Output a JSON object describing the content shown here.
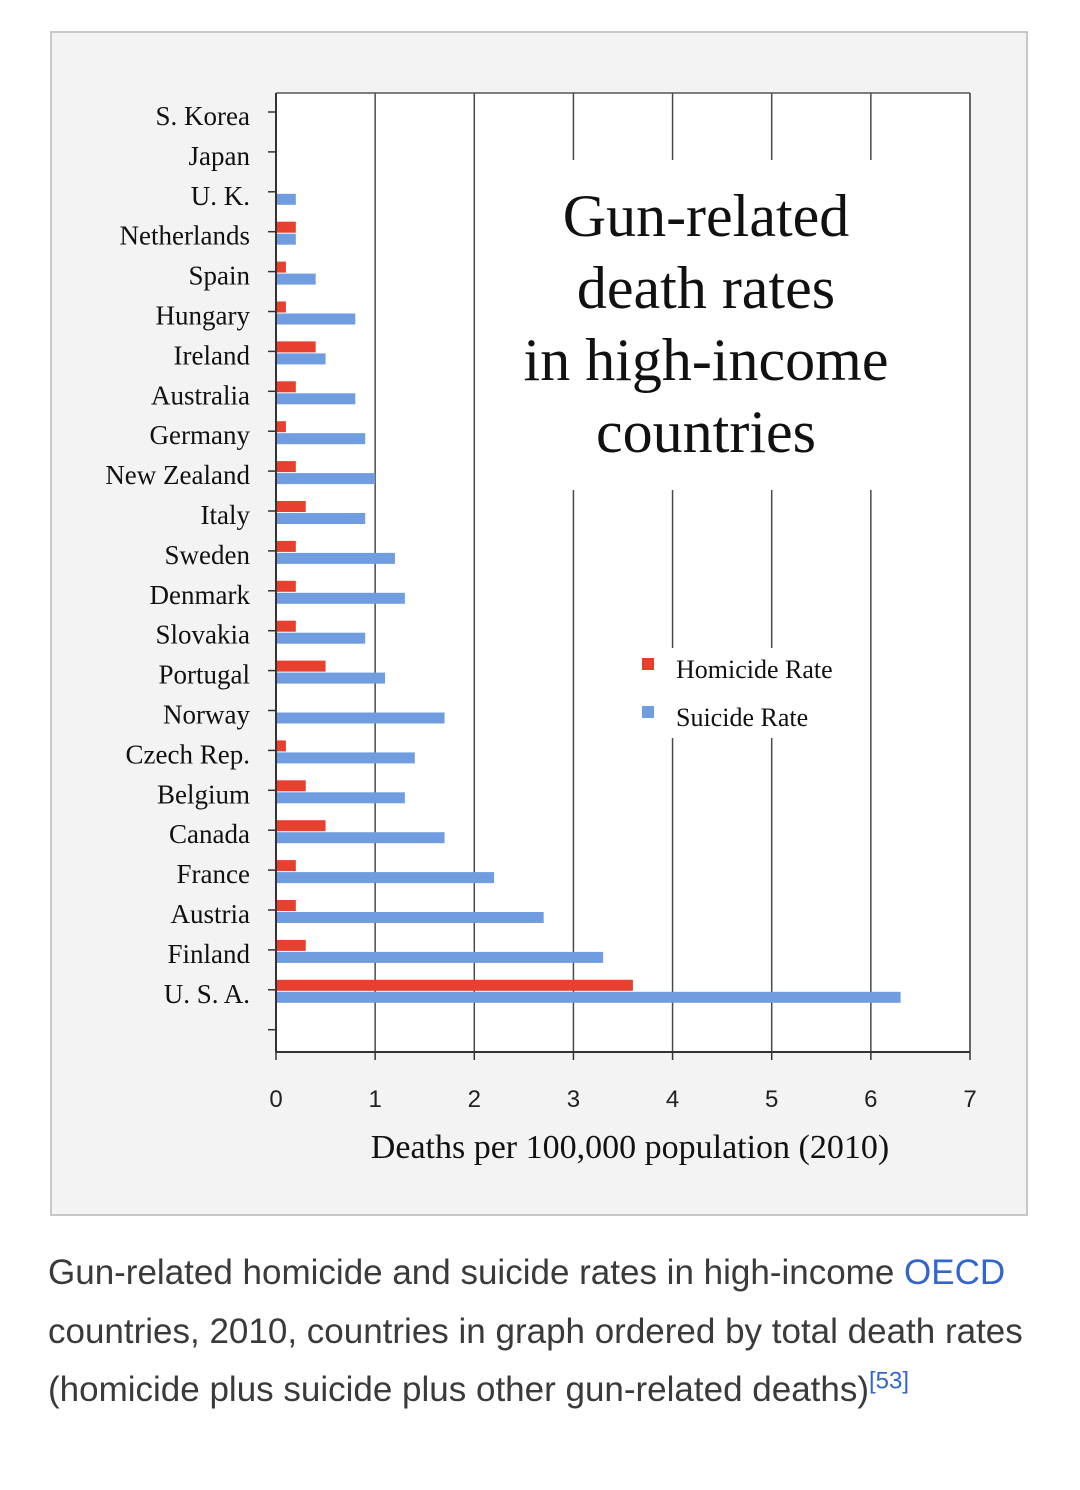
{
  "chart_data": {
    "type": "bar",
    "orientation": "horizontal",
    "title": "Gun-related death rates in high-income countries",
    "title_lines": [
      "Gun-related",
      "death rates",
      "in high-income",
      "countries"
    ],
    "xlabel": "Deaths per 100,000 population (2010)",
    "ylabel": "",
    "xlim": [
      0,
      7
    ],
    "xticks": [
      "0",
      "1",
      "2",
      "3",
      "4",
      "5",
      "6",
      "7"
    ],
    "grid": "vertical",
    "legend_position": "right",
    "categories": [
      "S. Korea",
      "Japan",
      "U. K.",
      "Netherlands",
      "Spain",
      "Hungary",
      "Ireland",
      "Australia",
      "Germany",
      "New Zealand",
      "Italy",
      "Sweden",
      "Denmark",
      "Slovakia",
      "Portugal",
      "Norway",
      "Czech Rep.",
      "Belgium",
      "Canada",
      "France",
      "Austria",
      "Finland",
      "U. S. A."
    ],
    "series": [
      {
        "name": "Homicide Rate",
        "color": "#e8402f",
        "values": [
          0,
          0,
          0,
          0.2,
          0.1,
          0.1,
          0.4,
          0.2,
          0.1,
          0.2,
          0.3,
          0.2,
          0.2,
          0.2,
          0.5,
          0,
          0.1,
          0.3,
          0.5,
          0.2,
          0.2,
          0.3,
          3.6
        ]
      },
      {
        "name": "Suicide Rate",
        "color": "#6f9de0",
        "values": [
          0,
          0,
          0.2,
          0.2,
          0.4,
          0.8,
          0.5,
          0.8,
          0.9,
          1.0,
          0.9,
          1.2,
          1.3,
          0.9,
          1.1,
          1.7,
          1.4,
          1.3,
          1.7,
          2.2,
          2.7,
          3.3,
          6.3
        ]
      }
    ]
  },
  "caption": {
    "part1": "Gun-related homicide and suicide rates in high-income ",
    "link": "OECD",
    "part2": " countries, 2010, countries in graph ordered by total death rates (homicide plus suicide plus other gun-related deaths)",
    "reference": "[53]"
  }
}
